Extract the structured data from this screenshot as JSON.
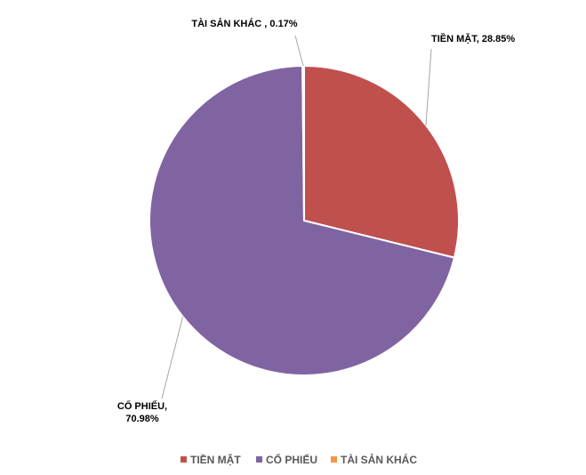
{
  "chart_data": {
    "type": "pie",
    "categories": [
      "TIỀN MẶT",
      "CỔ PHIẾU",
      "TÀI SẢN KHÁC"
    ],
    "values": [
      28.85,
      70.98,
      0.17
    ],
    "value_labels": [
      "TIỀN MẶT, 28.85%",
      [
        "CỔ PHIẾU,",
        "70.98%"
      ],
      "TÀI SẢN KHÁC , 0.17%"
    ],
    "colors": [
      "#c0504d",
      "#8064a2",
      "#f79646"
    ],
    "legend": "bottom"
  }
}
